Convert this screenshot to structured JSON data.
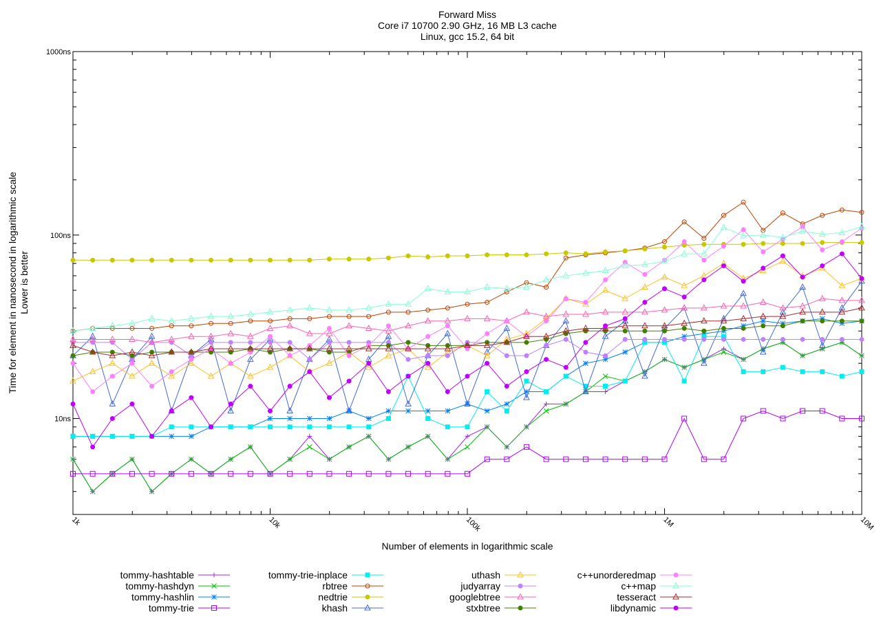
{
  "chart_data": {
    "type": "line",
    "title": [
      "Forward Miss",
      "Core i7 10700 2.90 GHz, 16 MB L3 cache",
      "Linux, gcc 15.2, 64 bit"
    ],
    "xlabel": "Number of elements in logarithmic scale",
    "ylabel": [
      "Time for element in nanosecond in logarithmic scale",
      "Lower is better"
    ],
    "xscale": "log",
    "yscale": "log",
    "xlim": [
      1000,
      10000000
    ],
    "ylim": [
      3,
      1000
    ],
    "grid": false,
    "legend_position": "bottom",
    "x_ticks": [
      {
        "value": 1000,
        "label": "1k"
      },
      {
        "value": 10000,
        "label": "10k"
      },
      {
        "value": 100000,
        "label": "100k"
      },
      {
        "value": 1000000,
        "label": "1M"
      },
      {
        "value": 10000000,
        "label": "10M"
      }
    ],
    "y_ticks": [
      {
        "value": 1000,
        "label": "1000ns"
      },
      {
        "value": 100,
        "label": "100ns"
      },
      {
        "value": 10,
        "label": "10ns"
      }
    ],
    "x": [
      1000,
      1259,
      1585,
      1995,
      2512,
      3162,
      3981,
      5012,
      6310,
      7943,
      10000,
      12589,
      15849,
      19953,
      25119,
      31623,
      39811,
      50119,
      63096,
      79433,
      100000,
      125893,
      158489,
      199526,
      251189,
      316228,
      398107,
      501187,
      630957,
      794328,
      1000000,
      1258925,
      1584893,
      1995262,
      2511886,
      3162278,
      3981072,
      5011872,
      6309573,
      7943282,
      10000000
    ],
    "series": [
      {
        "name": "tommy-hashtable",
        "color": "#a020f0",
        "marker": "plus",
        "values": [
          6,
          4,
          5,
          6,
          4,
          5,
          6,
          5,
          6,
          7,
          5,
          6,
          8,
          6,
          7,
          8,
          6,
          7,
          8,
          6,
          8,
          9,
          7,
          9,
          12,
          12,
          14,
          14,
          16,
          18,
          21,
          19,
          21,
          24,
          21,
          24,
          26,
          22,
          24,
          26,
          22
        ]
      },
      {
        "name": "tommy-hashdyn",
        "color": "#00c000",
        "marker": "cross",
        "values": [
          6,
          4,
          5,
          6,
          4,
          5,
          6,
          5,
          6,
          7,
          5,
          6,
          7,
          6,
          7,
          8,
          6,
          7,
          8,
          6,
          7,
          9,
          7,
          9,
          11,
          12,
          14,
          17,
          16,
          18,
          21,
          19,
          21,
          23,
          21,
          24,
          26,
          22,
          24,
          26,
          22
        ]
      },
      {
        "name": "tommy-hashlin",
        "color": "#0080ff",
        "marker": "star",
        "values": [
          8,
          8,
          8,
          8,
          8,
          8,
          8,
          9,
          9,
          9,
          10,
          10,
          10,
          10,
          11,
          10,
          11,
          11,
          11,
          11,
          12,
          11,
          12,
          14,
          14,
          17,
          20,
          21,
          23,
          26,
          26,
          28,
          29,
          30,
          32,
          34,
          33,
          34,
          35,
          33,
          34
        ]
      },
      {
        "name": "tommy-trie",
        "color": "#b000ff",
        "marker": "square-open",
        "values": [
          5,
          5,
          5,
          5,
          5,
          5,
          5,
          5,
          5,
          5,
          5,
          5,
          5,
          5,
          5,
          5,
          5,
          5,
          5,
          5,
          5,
          6,
          6,
          7,
          6,
          6,
          6,
          6,
          6,
          6,
          6,
          10,
          6,
          6,
          10,
          11,
          10,
          11,
          11,
          10,
          10
        ]
      },
      {
        "name": "tommy-trie-inplace",
        "color": "#00eeee",
        "marker": "square-filled",
        "values": [
          8,
          8,
          8,
          8,
          8,
          9,
          9,
          9,
          9,
          9,
          9,
          9,
          9,
          9,
          9,
          9,
          10,
          17,
          10,
          9,
          9,
          14,
          11,
          16,
          14,
          17,
          15,
          15,
          16,
          26,
          26,
          16,
          28,
          28,
          18,
          18,
          19,
          18,
          18,
          17,
          18
        ]
      },
      {
        "name": "rbtree",
        "color": "#c04000",
        "marker": "circle-open",
        "values": [
          30,
          31,
          31,
          31,
          31,
          32,
          32,
          33,
          33,
          34,
          34,
          35,
          35,
          36,
          36,
          36,
          38,
          38,
          39,
          40,
          42,
          43,
          49,
          55,
          52,
          75,
          78,
          80,
          82,
          85,
          92,
          118,
          96,
          128,
          151,
          106,
          132,
          115,
          128,
          137,
          133
        ]
      },
      {
        "name": "nedtrie",
        "color": "#c8c800",
        "marker": "circle-filled",
        "values": [
          73,
          73,
          73,
          73,
          73,
          73,
          73,
          73,
          73,
          73,
          73,
          73,
          73,
          74,
          74,
          74,
          75,
          77,
          76,
          77,
          77,
          78,
          78,
          78,
          79,
          80,
          79,
          81,
          82,
          84,
          86,
          88,
          89,
          89,
          89,
          90,
          90,
          90,
          91,
          91,
          91
        ]
      },
      {
        "name": "khash",
        "color": "#4169e1",
        "marker": "triangle-open",
        "values": [
          22,
          28,
          12,
          21,
          28,
          11,
          22,
          27,
          11,
          21,
          27,
          11,
          21,
          27,
          11,
          21,
          28,
          12,
          22,
          29,
          12,
          23,
          31,
          13,
          25,
          34,
          14,
          28,
          34,
          17,
          31,
          40,
          20,
          35,
          48,
          23,
          38,
          52,
          25,
          40,
          56
        ]
      },
      {
        "name": "uthash",
        "color": "#ffc020",
        "marker": "triangle-open",
        "values": [
          16,
          18,
          20,
          17,
          20,
          17,
          20,
          17,
          20,
          17,
          19,
          22,
          18,
          20,
          23,
          19,
          22,
          24,
          19,
          23,
          25,
          22,
          27,
          29,
          35,
          45,
          42,
          50,
          45,
          52,
          59,
          53,
          60,
          70,
          58,
          64,
          72,
          60,
          66,
          53,
          58
        ]
      },
      {
        "name": "judyarray",
        "color": "#c080ff",
        "marker": "circle-filled",
        "values": [
          26,
          26,
          26,
          21,
          26,
          26,
          22,
          26,
          26,
          26,
          26,
          26,
          21,
          26,
          26,
          26,
          26,
          21,
          22,
          22,
          26,
          26,
          22,
          22,
          25,
          27,
          23,
          22,
          27,
          27,
          27,
          27,
          27,
          27,
          27,
          27,
          27,
          27,
          27,
          27,
          27
        ]
      },
      {
        "name": "googlebtree",
        "color": "#ff60b0",
        "marker": "triangle-open",
        "values": [
          27,
          27,
          27,
          27,
          26,
          27,
          28,
          28,
          29,
          28,
          31,
          32,
          29,
          29,
          32,
          31,
          30,
          32,
          34,
          34,
          35,
          35,
          34,
          38,
          36,
          37,
          37,
          38,
          38,
          38,
          39,
          40,
          40,
          41,
          41,
          43,
          40,
          41,
          45,
          44,
          44
        ]
      },
      {
        "name": "stxbtree",
        "color": "#408000",
        "marker": "circle-filled",
        "values": [
          22,
          23,
          23,
          22,
          23,
          23,
          23,
          23,
          23,
          24,
          23,
          24,
          24,
          23,
          23,
          25,
          25,
          26,
          25,
          25,
          25,
          26,
          26,
          26,
          27,
          29,
          30,
          30,
          30,
          30,
          30,
          31,
          30,
          31,
          31,
          32,
          32,
          34,
          34,
          34,
          34
        ]
      },
      {
        "name": "c++unorderedmap",
        "color": "#ff80ff",
        "marker": "circle-filled",
        "values": [
          20,
          14,
          17,
          20,
          15,
          18,
          21,
          24,
          20,
          23,
          28,
          22,
          25,
          31,
          22,
          25,
          32,
          24,
          28,
          32,
          24,
          29,
          34,
          28,
          34,
          45,
          43,
          57,
          71,
          61,
          73,
          92,
          73,
          87,
          107,
          81,
          95,
          111,
          83,
          92,
          109
        ]
      },
      {
        "name": "c++map",
        "color": "#7fffd4",
        "marker": "triangle-open",
        "values": [
          30,
          31,
          32,
          33,
          35,
          34,
          35,
          36,
          36,
          37,
          38,
          39,
          40,
          39,
          39,
          40,
          42,
          42,
          51,
          49,
          49,
          52,
          51,
          52,
          57,
          60,
          62,
          64,
          68,
          69,
          72,
          79,
          79,
          110,
          99,
          100,
          97,
          105,
          101,
          103,
          111
        ]
      },
      {
        "name": "tesseract",
        "color": "#a52a2a",
        "marker": "triangle-open",
        "values": [
          25,
          23,
          22,
          23,
          22,
          23,
          23,
          24,
          24,
          24,
          24,
          24,
          24,
          24,
          24,
          24,
          24,
          24,
          24,
          24,
          25,
          25,
          26,
          28,
          28,
          30,
          31,
          31,
          32,
          32,
          32,
          33,
          34,
          34,
          35,
          36,
          36,
          38,
          38,
          38,
          40
        ]
      },
      {
        "name": "libdynamic",
        "color": "#c000ff",
        "marker": "circle-filled",
        "values": [
          12,
          7,
          10,
          12,
          8,
          11,
          13,
          9,
          12,
          15,
          11,
          15,
          18,
          13,
          16,
          20,
          14,
          17,
          20,
          14,
          17,
          20,
          15,
          18,
          21,
          19,
          26,
          32,
          35,
          43,
          51,
          46,
          57,
          68,
          56,
          66,
          77,
          59,
          68,
          79,
          58
        ]
      }
    ]
  }
}
